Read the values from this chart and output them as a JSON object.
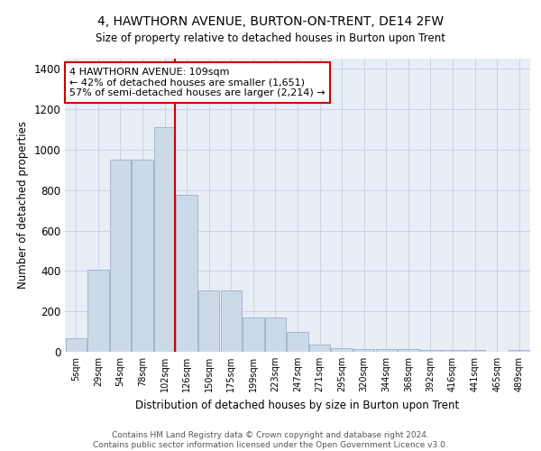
{
  "title": "4, HAWTHORN AVENUE, BURTON-ON-TRENT, DE14 2FW",
  "subtitle": "Size of property relative to detached houses in Burton upon Trent",
  "xlabel": "Distribution of detached houses by size in Burton upon Trent",
  "ylabel": "Number of detached properties",
  "footer_line1": "Contains HM Land Registry data © Crown copyright and database right 2024.",
  "footer_line2": "Contains public sector information licensed under the Open Government Licence v3.0.",
  "bar_labels": [
    "5sqm",
    "29sqm",
    "54sqm",
    "78sqm",
    "102sqm",
    "126sqm",
    "150sqm",
    "175sqm",
    "199sqm",
    "223sqm",
    "247sqm",
    "271sqm",
    "295sqm",
    "320sqm",
    "344sqm",
    "368sqm",
    "392sqm",
    "416sqm",
    "441sqm",
    "465sqm",
    "489sqm"
  ],
  "bar_values": [
    65,
    405,
    950,
    950,
    1110,
    775,
    305,
    305,
    170,
    170,
    100,
    35,
    20,
    15,
    15,
    15,
    10,
    10,
    10,
    0,
    10
  ],
  "bar_color": "#ccd9e8",
  "bar_edge_color": "#9ab0c8",
  "grid_color": "#c8d4e4",
  "bg_color": "#e8eef6",
  "vline_index": 4,
  "vline_color": "#cc0000",
  "annotation_text": "4 HAWTHORN AVENUE: 109sqm\n← 42% of detached houses are smaller (1,651)\n57% of semi-detached houses are larger (2,214) →",
  "annotation_box_color": "#ffffff",
  "annotation_box_edge": "#cc0000",
  "ylim": [
    0,
    1450
  ],
  "yticks": [
    0,
    200,
    400,
    600,
    800,
    1000,
    1200,
    1400
  ]
}
